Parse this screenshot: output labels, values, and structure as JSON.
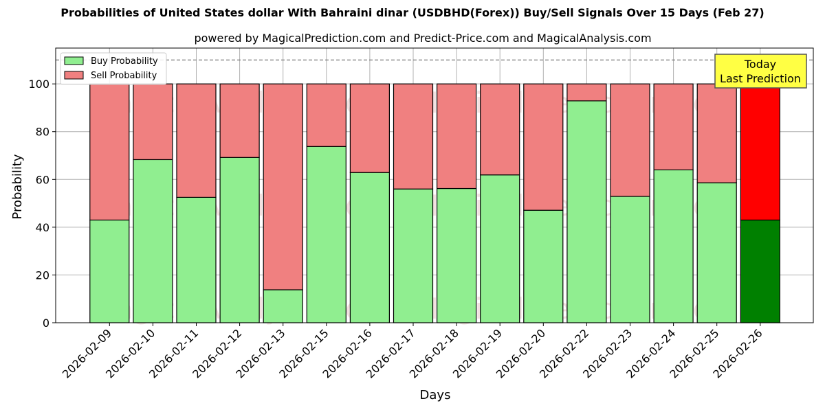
{
  "chart_data": {
    "type": "bar",
    "title": "Probabilities of United States dollar With Bahraini dinar (USDBHD(Forex)) Buy/Sell Signals Over 15 Days (Feb 27)",
    "subtitle": "powered by MagicalPrediction.com and Predict-Price.com and MagicalAnalysis.com",
    "xlabel": "Days",
    "ylabel": "Probability",
    "ylim": [
      0,
      115
    ],
    "yticks": [
      0,
      20,
      40,
      60,
      80,
      100
    ],
    "grid": true,
    "legend_position": "top-left",
    "reference_line": 110,
    "categories": [
      "2026-02-09",
      "2026-02-10",
      "2026-02-11",
      "2026-02-12",
      "2026-02-13",
      "2026-02-15",
      "2026-02-16",
      "2026-02-17",
      "2026-02-18",
      "2026-02-19",
      "2026-02-20",
      "2026-02-22",
      "2026-02-23",
      "2026-02-24",
      "2026-02-25",
      "2026-02-26"
    ],
    "series": [
      {
        "name": "Buy Probability",
        "color": "#90ee90",
        "values": [
          43,
          68.3,
          52.5,
          69.2,
          13.8,
          73.8,
          62.9,
          56,
          56.2,
          61.9,
          47.1,
          92.9,
          52.9,
          64,
          58.6,
          43
        ]
      },
      {
        "name": "Sell Probability",
        "color": "#f08080",
        "values": [
          57,
          31.7,
          47.5,
          30.8,
          86.2,
          26.2,
          37.1,
          44,
          43.8,
          38.1,
          52.9,
          7.1,
          47.1,
          36,
          41.4,
          57
        ]
      }
    ],
    "highlight": {
      "index": 15,
      "buy_color": "#008000",
      "sell_color": "#ff0000"
    },
    "annotation": {
      "lines": [
        "Today",
        "Last Prediction"
      ],
      "color": "#ffff44"
    },
    "watermarks": [
      "MagicalAnalysis.com",
      "MagicalPrediction.com"
    ]
  }
}
